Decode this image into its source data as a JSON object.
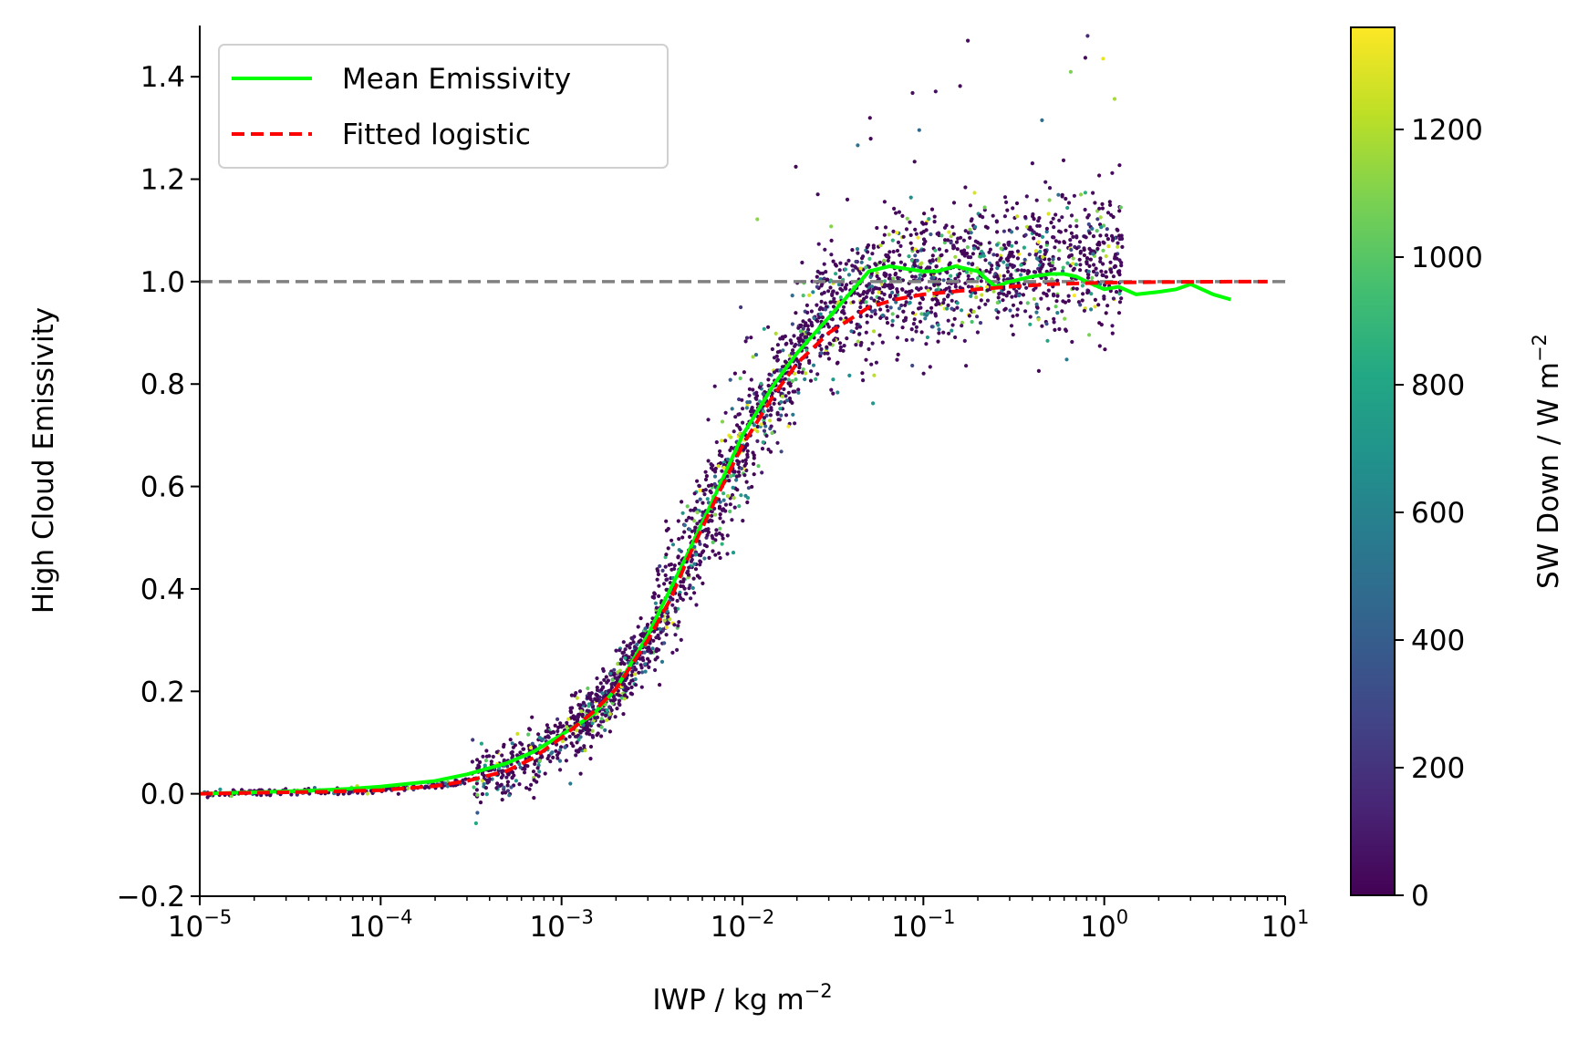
{
  "chart_data": {
    "type": "scatter",
    "title": "",
    "xlabel": "IWP / kg m",
    "xlabel_sup": "−2",
    "ylabel": "High Cloud Emissivity",
    "xscale": "log",
    "xlim": [
      1e-05,
      10
    ],
    "ylim": [
      -0.2,
      1.5
    ],
    "x_ticks": [
      {
        "value": 1e-05,
        "base": "10",
        "exp": "−5"
      },
      {
        "value": 0.0001,
        "base": "10",
        "exp": "−4"
      },
      {
        "value": 0.001,
        "base": "10",
        "exp": "−3"
      },
      {
        "value": 0.01,
        "base": "10",
        "exp": "−2"
      },
      {
        "value": 0.1,
        "base": "10",
        "exp": "−1"
      },
      {
        "value": 1,
        "base": "10",
        "exp": "0"
      },
      {
        "value": 10,
        "base": "10",
        "exp": "1"
      }
    ],
    "y_ticks": [
      {
        "value": -0.2,
        "label": "−0.2"
      },
      {
        "value": 0.0,
        "label": "0.0"
      },
      {
        "value": 0.2,
        "label": "0.2"
      },
      {
        "value": 0.4,
        "label": "0.4"
      },
      {
        "value": 0.6,
        "label": "0.6"
      },
      {
        "value": 0.8,
        "label": "0.8"
      },
      {
        "value": 1.0,
        "label": "1.0"
      },
      {
        "value": 1.2,
        "label": "1.2"
      },
      {
        "value": 1.4,
        "label": "1.4"
      }
    ],
    "reference_line": {
      "y": 1.0,
      "color": "#808080",
      "style": "dashed"
    },
    "legend": {
      "position": "upper-left",
      "entries": [
        {
          "label": "Mean Emissivity",
          "color": "#00ff00",
          "style": "solid"
        },
        {
          "label": "Fitted logistic",
          "color": "#ff0000",
          "style": "dashed"
        }
      ]
    },
    "series": [
      {
        "name": "Mean Emissivity",
        "color": "#00ff00",
        "style": "solid",
        "x": [
          1e-05,
          2e-05,
          4e-05,
          7e-05,
          0.0001,
          0.0002,
          0.0003,
          0.0005,
          0.0007,
          0.001,
          0.0015,
          0.002,
          0.003,
          0.004,
          0.005,
          0.007,
          0.01,
          0.015,
          0.02,
          0.03,
          0.04,
          0.05,
          0.065,
          0.08,
          0.1,
          0.12,
          0.15,
          0.2,
          0.25,
          0.3,
          0.4,
          0.5,
          0.6,
          0.7,
          0.8,
          1.0,
          1.2,
          1.5,
          2.0,
          2.5,
          3.0,
          4.0,
          5.0
        ],
        "y": [
          0.0,
          0.003,
          0.006,
          0.01,
          0.014,
          0.025,
          0.038,
          0.06,
          0.082,
          0.115,
          0.155,
          0.205,
          0.31,
          0.4,
          0.47,
          0.58,
          0.7,
          0.8,
          0.86,
          0.93,
          0.98,
          1.02,
          1.03,
          1.025,
          1.02,
          1.02,
          1.03,
          1.02,
          0.99,
          1.0,
          1.01,
          1.015,
          1.015,
          1.01,
          1.0,
          0.985,
          0.99,
          0.975,
          0.98,
          0.985,
          0.995,
          0.975,
          0.965
        ]
      },
      {
        "name": "Fitted logistic",
        "color": "#ff0000",
        "style": "dashed",
        "x": [
          1e-05,
          2e-05,
          5e-05,
          0.0001,
          0.0002,
          0.0003,
          0.0005,
          0.0007,
          0.001,
          0.0015,
          0.002,
          0.003,
          0.004,
          0.005,
          0.007,
          0.01,
          0.015,
          0.02,
          0.03,
          0.05,
          0.07,
          0.1,
          0.2,
          0.3,
          0.5,
          1.0,
          2.0,
          5.0,
          8.0
        ],
        "y": [
          0.0,
          0.002,
          0.004,
          0.007,
          0.015,
          0.025,
          0.045,
          0.07,
          0.11,
          0.16,
          0.205,
          0.3,
          0.38,
          0.46,
          0.57,
          0.68,
          0.78,
          0.84,
          0.9,
          0.95,
          0.965,
          0.975,
          0.985,
          0.99,
          0.995,
          0.998,
          0.999,
          1.0,
          1.0
        ]
      }
    ],
    "scatter": {
      "marker": "dot",
      "approximate_count": 3000,
      "distribution": "points scattered around the fitted logistic; spread grows with IWP, reaching about 0.85–1.2 for IWP above 0.03",
      "colormap": "viridis",
      "color_value": "SW Down"
    },
    "colorbar": {
      "label": "SW Down / W m",
      "label_sup": "−2",
      "cmap": "viridis",
      "range": [
        0,
        1360
      ],
      "ticks": [
        0,
        200,
        400,
        600,
        800,
        1000,
        1200
      ]
    }
  }
}
